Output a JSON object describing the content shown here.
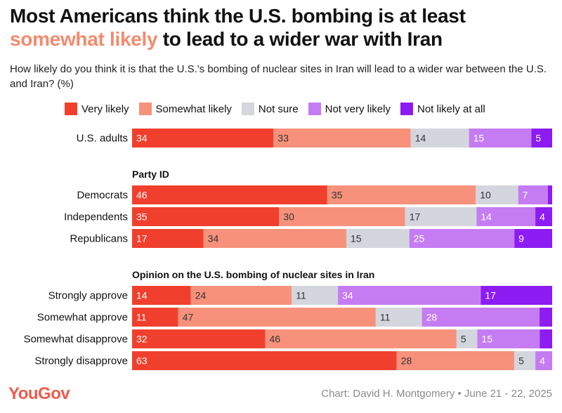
{
  "header": {
    "title_part1": "Most Americans think the U.S. bombing is at least",
    "title_highlight": "somewhat likely",
    "title_part2": "to lead to a wider war with Iran",
    "subtitle": "How likely do you think it is that the U.S.'s bombing of nuclear sites in Iran will lead to a wider war between the U.S. and Iran? (%)"
  },
  "footer": {
    "logo": "YouGov",
    "credit": "Chart: David H. Montgomery • June 21 - 22, 2025"
  },
  "colors": {
    "highlight": "#f28b6e",
    "logo": "#ef5b4c"
  },
  "chart_data": {
    "type": "bar",
    "orientation": "horizontal",
    "stacked": true,
    "legend_position": "top",
    "series": [
      {
        "name": "Very likely",
        "color": "#f0402d"
      },
      {
        "name": "Somewhat likely",
        "color": "#f7917b"
      },
      {
        "name": "Not sure",
        "color": "#d3d6dd"
      },
      {
        "name": "Not very likely",
        "color": "#c57cf3"
      },
      {
        "name": "Not likely at all",
        "color": "#8c1cf2"
      }
    ],
    "groups": [
      {
        "heading": "",
        "rows": [
          {
            "label": "U.S. adults",
            "values": [
              34,
              33,
              14,
              15,
              5
            ]
          }
        ]
      },
      {
        "heading": "Party ID",
        "rows": [
          {
            "label": "Democrats",
            "values": [
              46,
              35,
              10,
              7,
              1
            ]
          },
          {
            "label": "Independents",
            "values": [
              35,
              30,
              17,
              14,
              4
            ]
          },
          {
            "label": "Republicans",
            "values": [
              17,
              34,
              15,
              25,
              9
            ]
          }
        ]
      },
      {
        "heading": "Opinion on the U.S. bombing of nuclear sites in Iran",
        "rows": [
          {
            "label": "Strongly approve",
            "values": [
              14,
              24,
              11,
              34,
              17
            ]
          },
          {
            "label": "Somewhat approve",
            "values": [
              11,
              47,
              11,
              28,
              3
            ]
          },
          {
            "label": "Somewhat disapprove",
            "values": [
              32,
              46,
              5,
              15,
              3
            ]
          },
          {
            "label": "Strongly disapprove",
            "values": [
              63,
              28,
              5,
              4,
              0
            ]
          }
        ]
      }
    ],
    "value_label_min": 4
  }
}
